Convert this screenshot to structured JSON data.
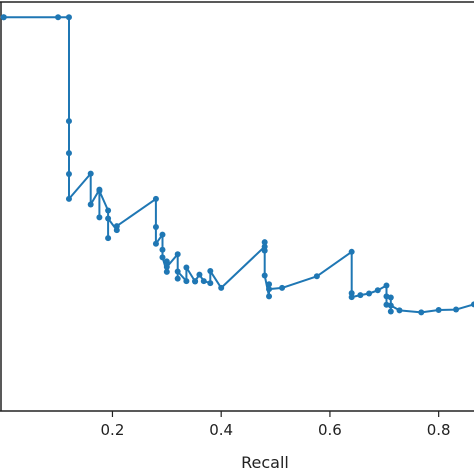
{
  "chart_data": {
    "type": "line",
    "title": "",
    "xlabel": "Recall",
    "ylabel": "",
    "xlim": [
      -0.005,
      0.865
    ],
    "ylim": [
      0.1,
      1.12
    ],
    "xticks": [
      0.2,
      0.4,
      0.6,
      0.8
    ],
    "x_tick_labels": [
      "0.2",
      "0.4",
      "0.6",
      "0.8"
    ],
    "grid": false,
    "legend": "none",
    "color": "#1f77b4",
    "series": [
      {
        "x": [
          0.0,
          0.0,
          0.1,
          0.12,
          0.12,
          0.12,
          0.12,
          0.12,
          0.16,
          0.16,
          0.176,
          0.176,
          0.176,
          0.192,
          0.192,
          0.192,
          0.208,
          0.208,
          0.28,
          0.28,
          0.28,
          0.292,
          0.292,
          0.292,
          0.3,
          0.3,
          0.3,
          0.32,
          0.32,
          0.32,
          0.336,
          0.336,
          0.352,
          0.352,
          0.36,
          0.368,
          0.38,
          0.38,
          0.4,
          0.48,
          0.48,
          0.48,
          0.48,
          0.488,
          0.488,
          0.488,
          0.512,
          0.576,
          0.64,
          0.64,
          0.64,
          0.656,
          0.672,
          0.688,
          0.704,
          0.704,
          0.704,
          0.712,
          0.712,
          0.712,
          0.728,
          0.768,
          0.8,
          0.832,
          0.865
        ],
        "y": [
          1.082,
          1.082,
          1.082,
          1.082,
          0.823,
          0.743,
          0.691,
          0.629,
          0.692,
          0.615,
          0.652,
          0.583,
          0.649,
          0.6,
          0.531,
          0.58,
          0.551,
          0.561,
          0.629,
          0.559,
          0.517,
          0.54,
          0.502,
          0.483,
          0.447,
          0.473,
          0.459,
          0.491,
          0.43,
          0.448,
          0.424,
          0.458,
          0.423,
          0.424,
          0.44,
          0.424,
          0.419,
          0.449,
          0.407,
          0.51,
          0.521,
          0.5,
          0.438,
          0.386,
          0.416,
          0.404,
          0.407,
          0.436,
          0.497,
          0.394,
          0.384,
          0.389,
          0.393,
          0.401,
          0.413,
          0.365,
          0.386,
          0.383,
          0.348,
          0.363,
          0.351,
          0.346,
          0.352,
          0.353,
          0.366
        ]
      }
    ]
  }
}
